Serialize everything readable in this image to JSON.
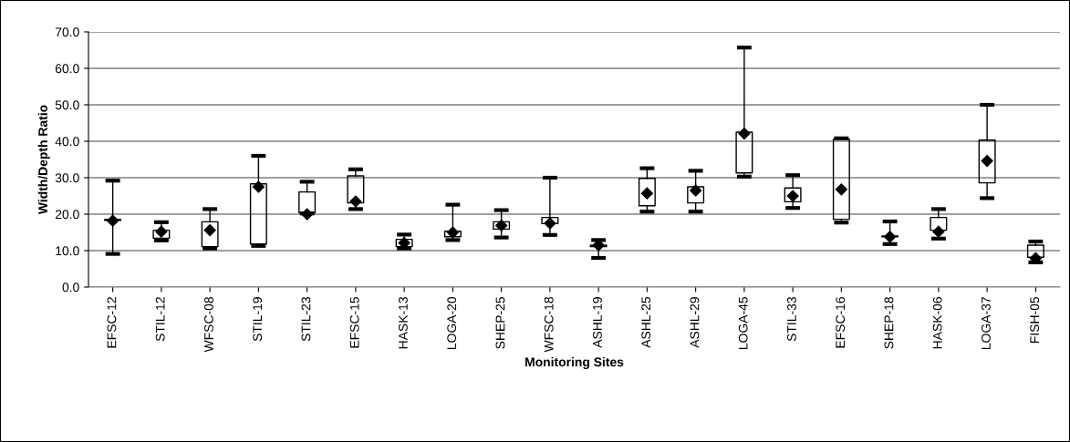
{
  "chart_data": {
    "type": "box",
    "xlabel": "Monitoring Sites",
    "ylabel": "Width/Depth Ratio",
    "categories": [
      "EFSC-12",
      "STIL-12",
      "WFSC-08",
      "STIL-19",
      "STIL-23",
      "EFSC-15",
      "HASK-13",
      "LOGA-20",
      "SHEP-25",
      "WFSC-18",
      "ASHL-19",
      "ASHL-25",
      "ASHL-29",
      "LOGA-45",
      "STIL-33",
      "EFSC-16",
      "SHEP-18",
      "HASK-06",
      "LOGA-37",
      "FISH-05"
    ],
    "boxes": [
      {
        "low": 9.1,
        "q1": 18.3,
        "q3": 18.6,
        "high": 29.2,
        "mean": 18.2
      },
      {
        "low": 12.8,
        "q1": 13.4,
        "q3": 15.6,
        "high": 17.8,
        "mean": 15.2
      },
      {
        "low": 10.6,
        "q1": 11.1,
        "q3": 17.9,
        "high": 21.4,
        "mean": 15.6
      },
      {
        "low": 11.3,
        "q1": 11.8,
        "q3": 28.3,
        "high": 36.0,
        "mean": 27.5
      },
      {
        "low": 20.2,
        "q1": 20.4,
        "q3": 26.1,
        "high": 28.9,
        "mean": 20.0
      },
      {
        "low": 21.4,
        "q1": 23.1,
        "q3": 30.5,
        "high": 32.3,
        "mean": 23.5
      },
      {
        "low": 10.6,
        "q1": 11.1,
        "q3": 13.1,
        "high": 14.4,
        "mean": 12.1
      },
      {
        "low": 12.9,
        "q1": 13.8,
        "q3": 15.3,
        "high": 22.6,
        "mean": 15.0
      },
      {
        "low": 13.6,
        "q1": 15.9,
        "q3": 17.9,
        "high": 21.1,
        "mean": 16.9
      },
      {
        "low": 14.3,
        "q1": 17.4,
        "q3": 19.1,
        "high": 30.0,
        "mean": 17.5
      },
      {
        "low": 8.0,
        "q1": 11.1,
        "q3": 11.5,
        "high": 12.9,
        "mean": 11.5
      },
      {
        "low": 20.7,
        "q1": 22.3,
        "q3": 29.8,
        "high": 32.6,
        "mean": 25.7
      },
      {
        "low": 20.7,
        "q1": 23.1,
        "q3": 27.5,
        "high": 31.9,
        "mean": 26.5
      },
      {
        "low": 30.3,
        "q1": 31.3,
        "q3": 42.5,
        "high": 65.7,
        "mean": 42.1
      },
      {
        "low": 21.7,
        "q1": 23.4,
        "q3": 27.2,
        "high": 30.7,
        "mean": 25.0
      },
      {
        "low": 17.7,
        "q1": 18.6,
        "q3": 40.6,
        "high": 40.8,
        "mean": 26.8
      },
      {
        "low": 11.8,
        "q1": 13.8,
        "q3": 14.0,
        "high": 18.0,
        "mean": 13.8
      },
      {
        "low": 13.3,
        "q1": 15.6,
        "q3": 19.1,
        "high": 21.4,
        "mean": 15.2
      },
      {
        "low": 24.4,
        "q1": 28.6,
        "q3": 40.3,
        "high": 50.0,
        "mean": 34.6
      },
      {
        "low": 6.8,
        "q1": 8.2,
        "q3": 11.5,
        "high": 12.5,
        "mean": 7.9
      }
    ],
    "ylim": [
      0,
      70
    ],
    "yticks": [
      {
        "value": 0,
        "label": "0.0"
      },
      {
        "value": 10,
        "label": "10.0"
      },
      {
        "value": 20,
        "label": "20.0"
      },
      {
        "value": 30,
        "label": "30.0"
      },
      {
        "value": 40,
        "label": "40.0"
      },
      {
        "value": 50,
        "label": "50.0"
      },
      {
        "value": 60,
        "label": "60.0"
      },
      {
        "value": 70,
        "label": "70.0"
      }
    ],
    "grid": "y",
    "marker": "diamond"
  }
}
